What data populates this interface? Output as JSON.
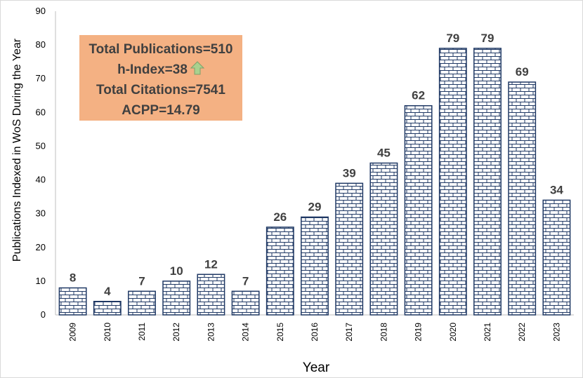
{
  "chart_data": {
    "type": "bar",
    "categories": [
      "2009",
      "2010",
      "2011",
      "2012",
      "2013",
      "2014",
      "2015",
      "2016",
      "2017",
      "2018",
      "2019",
      "2020",
      "2021",
      "2022",
      "2023"
    ],
    "values": [
      8,
      4,
      7,
      10,
      12,
      7,
      26,
      29,
      39,
      45,
      62,
      79,
      79,
      69,
      34
    ],
    "xlabel": "Year",
    "ylabel": "Publications Indexed  in WoS During the Year",
    "ylim": [
      0,
      90
    ],
    "yticks": [
      0,
      10,
      20,
      30,
      40,
      50,
      60,
      70,
      80,
      90
    ],
    "grid": false,
    "bar_pattern": "brick",
    "bar_color": "#1f3864",
    "data_label_color": "#404040"
  },
  "info_box": {
    "lines": [
      "Total Publications=510",
      "h-Index=38",
      "Total Citations=7541",
      "ACPP=14.79"
    ],
    "background": "#f4b183",
    "arrow_icon": "up-arrow-icon",
    "arrow_color": "#a9d18e"
  }
}
